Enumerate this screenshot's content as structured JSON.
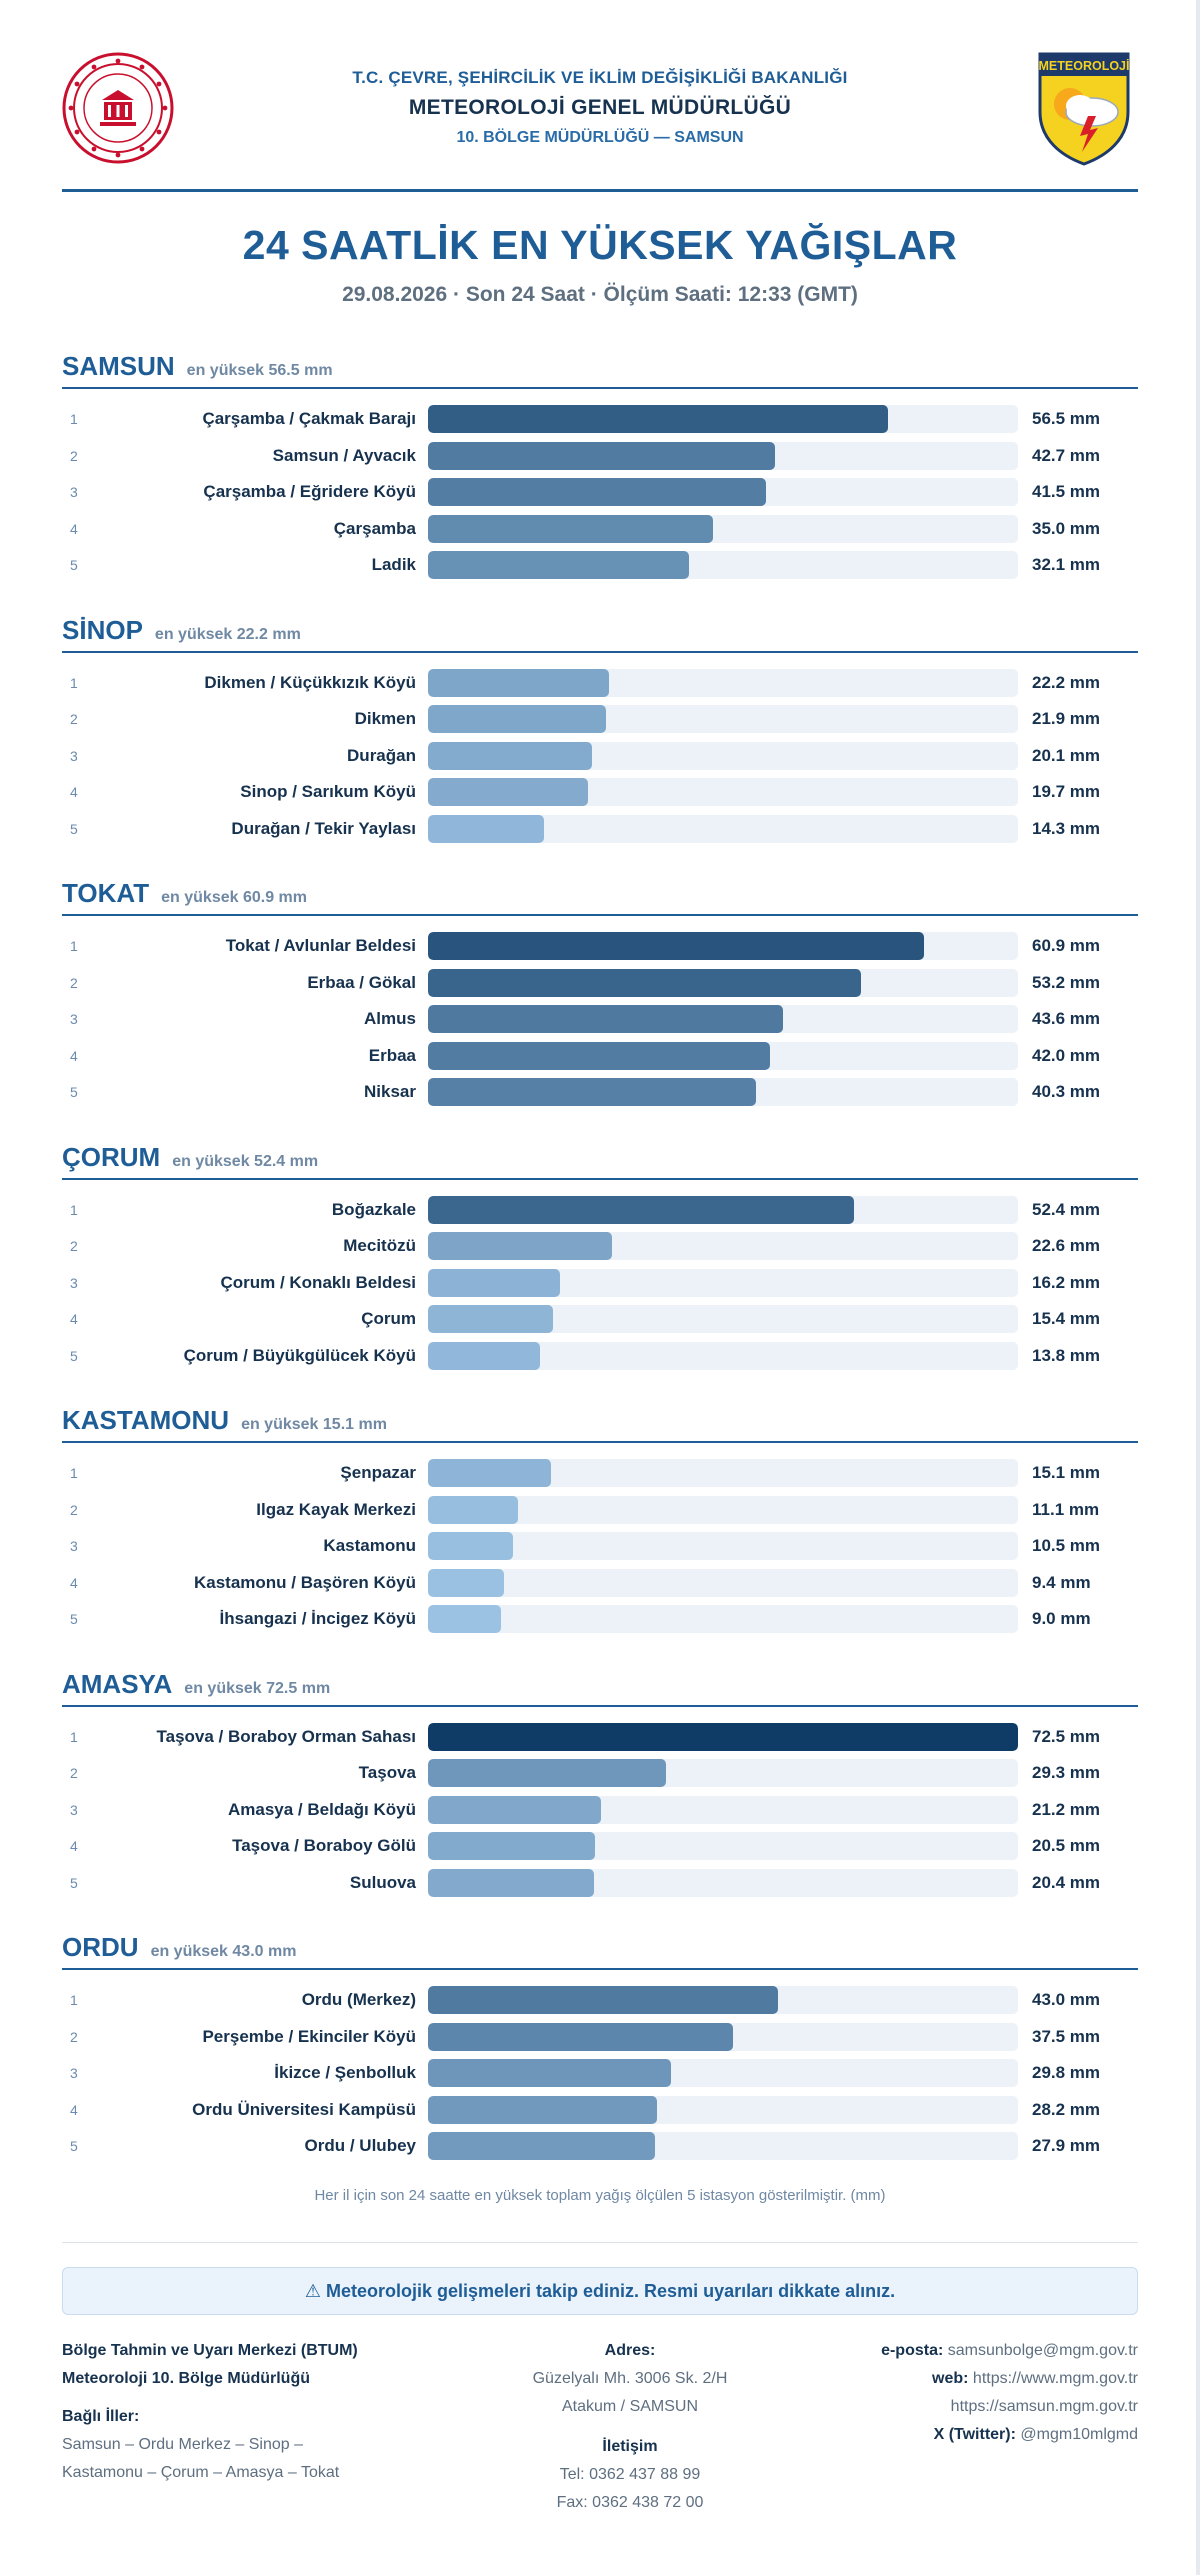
{
  "header": {
    "ministry": "T.C. ÇEVRE, ŞEHİRCİLİK VE İKLİM DEĞİŞİKLİĞİ BAKANLIĞI",
    "agency": "METEOROLOJİ GENEL MÜDÜRLÜĞÜ",
    "region": "10. BÖLGE MÜDÜRLÜĞÜ — SAMSUN",
    "logo_text": "METEOROLOJİ"
  },
  "title": "24 SAATLİK EN YÜKSEK YAĞIŞLAR",
  "subtitle": "29.08.2026 · Son 24 Saat · Ölçüm Saati: 12:33 (GMT)",
  "colors": {
    "brand": "#1f5d97",
    "bar_dark": "#0e3c66",
    "bar_light": "#9cc2e3",
    "track": "#edf2f8"
  },
  "chart_data": {
    "type": "bar",
    "orientation": "horizontal",
    "unit": "mm",
    "xlim": [
      0,
      72.5
    ],
    "provinces": [
      {
        "name": "SAMSUN",
        "max_label": "en yüksek 56.5 mm",
        "stations": [
          "Çarşamba / Çakmak Barajı",
          "Samsun / Ayvacık",
          "Çarşamba / Eğridere Köyü",
          "Çarşamba",
          "Ladik"
        ],
        "values": [
          56.5,
          42.7,
          41.5,
          35.0,
          32.1
        ],
        "labels": [
          "56.5 mm",
          "42.7 mm",
          "41.5 mm",
          "35.0 mm",
          "32.1 mm"
        ]
      },
      {
        "name": "SİNOP",
        "max_label": "en yüksek 22.2 mm",
        "stations": [
          "Dikmen / Küçükkızık Köyü",
          "Dikmen",
          "Durağan",
          "Sinop / Sarıkum Köyü",
          "Durağan / Tekir Yaylası"
        ],
        "values": [
          22.2,
          21.9,
          20.1,
          19.7,
          14.3
        ],
        "labels": [
          "22.2 mm",
          "21.9 mm",
          "20.1 mm",
          "19.7 mm",
          "14.3 mm"
        ]
      },
      {
        "name": "TOKAT",
        "max_label": "en yüksek 60.9 mm",
        "stations": [
          "Tokat / Avlunlar Beldesi",
          "Erbaa / Gökal",
          "Almus",
          "Erbaa",
          "Niksar"
        ],
        "values": [
          60.9,
          53.2,
          43.6,
          42.0,
          40.3
        ],
        "labels": [
          "60.9 mm",
          "53.2 mm",
          "43.6 mm",
          "42.0 mm",
          "40.3 mm"
        ]
      },
      {
        "name": "ÇORUM",
        "max_label": "en yüksek 52.4 mm",
        "stations": [
          "Boğazkale",
          "Mecitözü",
          "Çorum / Konaklı Beldesi",
          "Çorum",
          "Çorum / Büyükgülücek Köyü"
        ],
        "values": [
          52.4,
          22.6,
          16.2,
          15.4,
          13.8
        ],
        "labels": [
          "52.4 mm",
          "22.6 mm",
          "16.2 mm",
          "15.4 mm",
          "13.8 mm"
        ]
      },
      {
        "name": "KASTAMONU",
        "max_label": "en yüksek 15.1 mm",
        "stations": [
          "Şenpazar",
          "Ilgaz Kayak Merkezi",
          "Kastamonu",
          "Kastamonu / Başören Köyü",
          "İhsangazi / İncigez Köyü"
        ],
        "values": [
          15.1,
          11.1,
          10.5,
          9.4,
          9.0
        ],
        "labels": [
          "15.1 mm",
          "11.1 mm",
          "10.5 mm",
          "9.4 mm",
          "9.0 mm"
        ]
      },
      {
        "name": "AMASYA",
        "max_label": "en yüksek 72.5 mm",
        "stations": [
          "Taşova / Boraboy Orman Sahası",
          "Taşova",
          "Amasya / Beldağı Köyü",
          "Taşova / Boraboy Gölü",
          "Suluova"
        ],
        "values": [
          72.5,
          29.3,
          21.2,
          20.5,
          20.4
        ],
        "labels": [
          "72.5 mm",
          "29.3 mm",
          "21.2 mm",
          "20.5 mm",
          "20.4 mm"
        ]
      },
      {
        "name": "ORDU",
        "max_label": "en yüksek 43.0 mm",
        "stations": [
          "Ordu (Merkez)",
          "Perşembe / Ekinciler Köyü",
          "İkizce / Şenbolluk",
          "Ordu Üniversitesi Kampüsü",
          "Ordu / Ulubey"
        ],
        "values": [
          43.0,
          37.5,
          29.8,
          28.2,
          27.9
        ],
        "labels": [
          "43.0 mm",
          "37.5 mm",
          "29.8 mm",
          "28.2 mm",
          "27.9 mm"
        ]
      }
    ]
  },
  "note": "Her il için son 24 saatte en yüksek toplam yağış ölçülen 5 istasyon gösterilmiştir. (mm)",
  "alert": "⚠ Meteorolojik gelişmeleri takip ediniz. Resmi uyarıları dikkate alınız.",
  "footer": {
    "center_name": "Bölge Tahmin ve Uyarı Merkezi (BTUM)",
    "office_name": "Meteoroloji 10. Bölge Müdürlüğü",
    "provinces_label": "Bağlı İller:",
    "provinces_line1": "Samsun – Ordu Merkez – Sinop –",
    "provinces_line2": "Kastamonu – Çorum – Amasya – Tokat",
    "address_label": "Adres:",
    "address_line1": "Güzelyalı Mh. 3006 Sk. 2/H",
    "address_line2": "Atakum / SAMSUN",
    "contact_label": "İletişim",
    "phone": "Tel: 0362 437 88 99",
    "fax": "Fax: 0362 438 72 00",
    "email_label": "e-posta:",
    "email": "samsunbolge@mgm.gov.tr",
    "web_label": "web:",
    "web1": "https://www.mgm.gov.tr",
    "web2": "https://samsun.mgm.gov.tr",
    "twitter_label": "X (Twitter):",
    "twitter": "@mgm10mlgmd"
  }
}
